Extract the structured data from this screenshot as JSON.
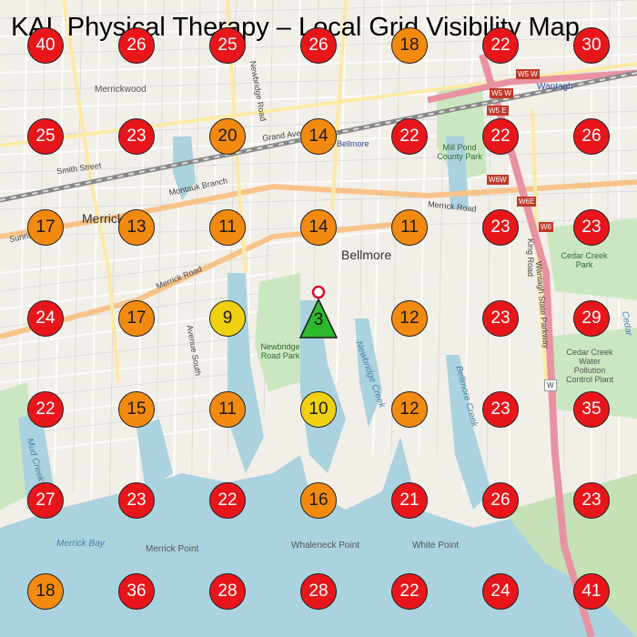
{
  "title": "KAL Physical Therapy – Local Grid Visibility Map",
  "colors": {
    "red": "#e8161b",
    "orange": "#f38a10",
    "yellow": "#f0d010",
    "green": "#2eb82e"
  },
  "grid": [
    [
      40,
      26,
      25,
      26,
      18,
      22,
      30
    ],
    [
      25,
      23,
      20,
      14,
      22,
      22,
      26
    ],
    [
      17,
      13,
      11,
      14,
      11,
      23,
      23
    ],
    [
      24,
      17,
      9,
      3,
      12,
      23,
      29
    ],
    [
      22,
      15,
      11,
      10,
      12,
      23,
      35
    ],
    [
      27,
      23,
      22,
      16,
      21,
      26,
      23
    ],
    [
      18,
      36,
      28,
      28,
      22,
      24,
      41
    ]
  ],
  "business_marker": {
    "rank": "3",
    "icon": "triangle-pin-icon"
  },
  "map_labels": {
    "merrickwood": "Merrickwood",
    "smith_street": "Smith Street",
    "grand_avenue": "Grand Avenue",
    "montauk_branch": "Montauk Branch",
    "merrick": "Merrick",
    "merrick_road": "Merrick Road",
    "merrick_road_east": "Merrick Road",
    "bellmore": "Bellmore",
    "bellmore_station": "Bellmore",
    "newbridge_road": "Newbridge Road",
    "newbridge_road_park": "Newbridge Road Park",
    "mill_pond_park": "Mill Pond County Park",
    "wantagh": "Wantagh",
    "cedar_creek_park": "Cedar Creek Park",
    "cedar_creek_plant": "Cedar Creek Water Pollution Control Plant",
    "king_road": "King Road",
    "wantagh_parkway": "Wantagh State Parkway",
    "newbridge_creek": "Newbridge Creek",
    "bellmore_creek": "Bellmore Creek",
    "mud_creek": "Mud Creek",
    "merrick_bay": "Merrick Bay",
    "merrick_point": "Merrick Point",
    "whaleneck_point": "Whaleneck Point",
    "white_point": "White Point",
    "avenue_south": "Avenue South",
    "sunrise": "Sunrise",
    "cedar": "Cedar"
  },
  "shields": [
    "W5 W",
    "W5 W",
    "W5 E",
    "W6W",
    "W6E",
    "W6",
    "W"
  ]
}
